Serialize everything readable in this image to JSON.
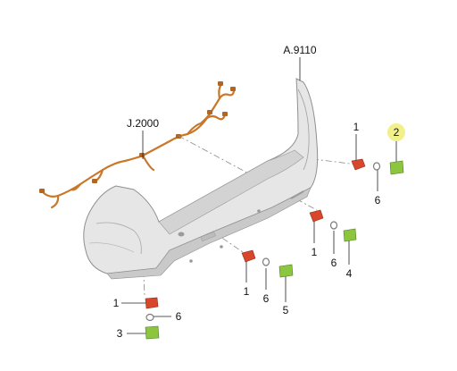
{
  "colors": {
    "background": "#ffffff",
    "bumper_fill": "#e6e6e6",
    "bumper_shade": "#c9c9c9",
    "bumper_edge": "#8f8f8f",
    "harness_wire": "#c9782a",
    "sensor_red": "#d9472b",
    "sensor_green": "#8cc63f",
    "ring_grey": "#bdbdbd",
    "leader_line": "#222222",
    "dash_line": "#888888",
    "callout_highlight": "#f2f08a"
  },
  "labels": {
    "bumper_part": "A.9110",
    "harness_part": "J.2000",
    "sensor_right_1": "1",
    "sensor_right_2": "2",
    "sensor_right_6": "6",
    "sensor_midright_1": "1",
    "sensor_midright_6": "6",
    "sensor_midright_4": "4",
    "sensor_mid_1": "1",
    "sensor_mid_6": "6",
    "sensor_mid_5": "5",
    "sensor_left_1": "1",
    "sensor_left_6": "6",
    "sensor_left_3": "3"
  },
  "highlighted_callout": "2"
}
